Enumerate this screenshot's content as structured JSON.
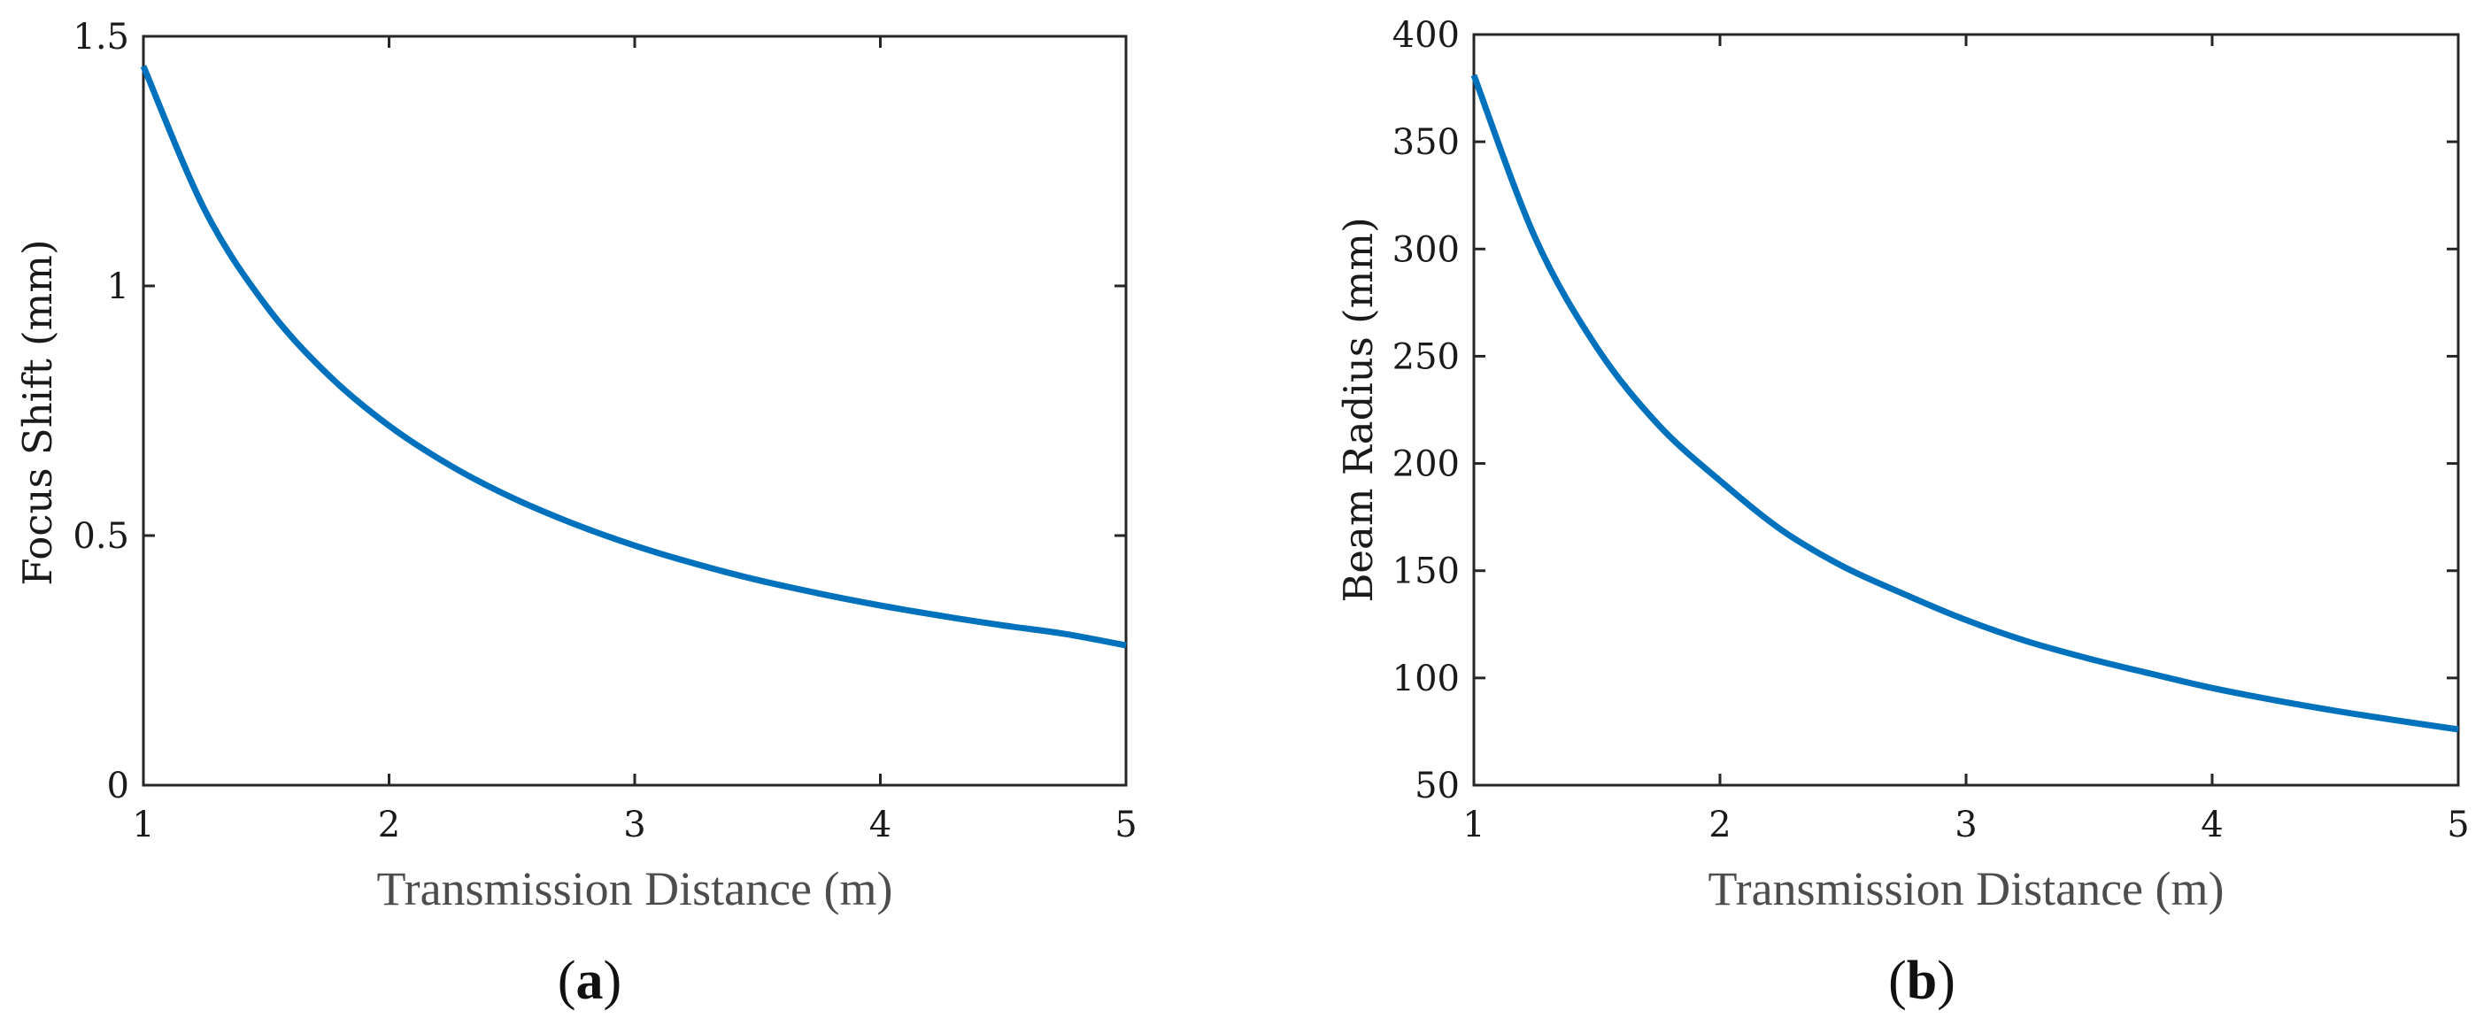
{
  "chart_data": [
    {
      "type": "line",
      "panel": "a",
      "caption_letter": "a",
      "title": "",
      "xlabel": "Transmission Distance (m)",
      "ylabel": "Focus Shift (mm)",
      "xlim": [
        1,
        5
      ],
      "ylim": [
        0,
        1.5
      ],
      "xticks": [
        "1",
        "2",
        "3",
        "4",
        "5"
      ],
      "yticks": [
        "0",
        "0.5",
        "1",
        "1.5"
      ],
      "ytick_values": [
        0,
        0.5,
        1,
        1.5
      ],
      "grid": false,
      "legend": null,
      "line_color": "#0072BD",
      "series": [
        {
          "name": "Focus Shift",
          "x": [
            1.0,
            1.25,
            1.5,
            1.75,
            2.0,
            2.25,
            2.5,
            2.75,
            3.0,
            3.25,
            3.5,
            3.75,
            4.0,
            4.25,
            4.5,
            4.75,
            5.0
          ],
          "values": [
            1.44,
            1.152,
            0.96,
            0.823,
            0.72,
            0.64,
            0.576,
            0.524,
            0.48,
            0.443,
            0.411,
            0.384,
            0.36,
            0.339,
            0.32,
            0.303,
            0.28
          ]
        }
      ]
    },
    {
      "type": "line",
      "panel": "b",
      "caption_letter": "b",
      "title": "",
      "xlabel": "Transmission Distance (m)",
      "ylabel": "Beam Radius (mm)",
      "xlim": [
        1,
        5
      ],
      "ylim": [
        50,
        400
      ],
      "xticks": [
        "1",
        "2",
        "3",
        "4",
        "5"
      ],
      "yticks": [
        "50",
        "100",
        "150",
        "200",
        "250",
        "300",
        "350",
        "400"
      ],
      "ytick_values": [
        50,
        100,
        150,
        200,
        250,
        300,
        350,
        400
      ],
      "grid": false,
      "legend": null,
      "line_color": "#0072BD",
      "series": [
        {
          "name": "Beam Radius",
          "x": [
            1.0,
            1.25,
            1.5,
            1.75,
            2.0,
            2.25,
            2.5,
            2.75,
            3.0,
            3.25,
            3.5,
            3.75,
            4.0,
            4.25,
            4.5,
            4.75,
            5.0
          ],
          "values": [
            381,
            305,
            254,
            218,
            192,
            169,
            152,
            139,
            127,
            117,
            109,
            102,
            95.3,
            89.7,
            84.7,
            80.2,
            76
          ]
        }
      ]
    }
  ],
  "captions": {
    "a": {
      "open": "(",
      "letter": "a",
      "close": ")"
    },
    "b": {
      "open": "(",
      "letter": "b",
      "close": ")"
    }
  }
}
